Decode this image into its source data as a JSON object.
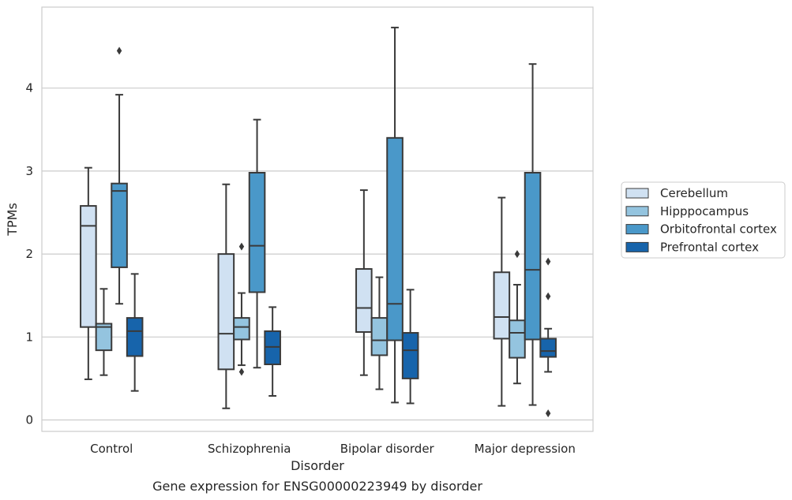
{
  "caption": "Gene expression for ENSG00000223949 by disorder",
  "chart_data": {
    "type": "box",
    "xlabel": "Disorder",
    "ylabel": "TPMs",
    "ylim": [
      -0.15,
      5.0
    ],
    "yticks": [
      0,
      1,
      2,
      3,
      4
    ],
    "grid": "horizontal",
    "legend_position": "right",
    "categories": [
      "Control",
      "Schizophrenia",
      "Bipolar disorder",
      "Major depression"
    ],
    "series": [
      {
        "name": "Cerebellum",
        "color": "#d0e1f2",
        "boxes": [
          {
            "whisker_low": 0.49,
            "q1": 1.12,
            "median": 2.34,
            "q3": 2.58,
            "whisker_high": 3.04,
            "outliers": []
          },
          {
            "whisker_low": 0.14,
            "q1": 0.61,
            "median": 1.04,
            "q3": 2.0,
            "whisker_high": 2.84,
            "outliers": []
          },
          {
            "whisker_low": 0.54,
            "q1": 1.06,
            "median": 1.35,
            "q3": 1.82,
            "whisker_high": 2.77,
            "outliers": []
          },
          {
            "whisker_low": 0.17,
            "q1": 0.98,
            "median": 1.24,
            "q3": 1.78,
            "whisker_high": 2.68,
            "outliers": []
          }
        ]
      },
      {
        "name": "Hipppocampus",
        "color": "#94c4df",
        "boxes": [
          {
            "whisker_low": 0.54,
            "q1": 0.84,
            "median": 1.12,
            "q3": 1.16,
            "whisker_high": 1.58,
            "outliers": []
          },
          {
            "whisker_low": 0.66,
            "q1": 0.97,
            "median": 1.12,
            "q3": 1.23,
            "whisker_high": 1.53,
            "outliers": [
              0.58,
              2.09
            ]
          },
          {
            "whisker_low": 0.37,
            "q1": 0.78,
            "median": 0.96,
            "q3": 1.23,
            "whisker_high": 1.72,
            "outliers": []
          },
          {
            "whisker_low": 0.44,
            "q1": 0.75,
            "median": 1.05,
            "q3": 1.2,
            "whisker_high": 1.63,
            "outliers": [
              2.0
            ]
          }
        ]
      },
      {
        "name": "Orbitofrontal cortex",
        "color": "#4a98c9",
        "boxes": [
          {
            "whisker_low": 1.4,
            "q1": 1.84,
            "median": 2.76,
            "q3": 2.85,
            "whisker_high": 3.92,
            "outliers": [
              4.45
            ]
          },
          {
            "whisker_low": 0.63,
            "q1": 1.54,
            "median": 2.1,
            "q3": 2.98,
            "whisker_high": 3.62,
            "outliers": []
          },
          {
            "whisker_low": 0.21,
            "q1": 0.96,
            "median": 1.4,
            "q3": 3.4,
            "whisker_high": 4.73,
            "outliers": []
          },
          {
            "whisker_low": 0.18,
            "q1": 0.97,
            "median": 1.81,
            "q3": 2.98,
            "whisker_high": 4.29,
            "outliers": []
          }
        ]
      },
      {
        "name": "Prefrontal cortex",
        "color": "#1764ab",
        "boxes": [
          {
            "whisker_low": 0.35,
            "q1": 0.77,
            "median": 1.07,
            "q3": 1.23,
            "whisker_high": 1.76,
            "outliers": []
          },
          {
            "whisker_low": 0.29,
            "q1": 0.67,
            "median": 0.88,
            "q3": 1.07,
            "whisker_high": 1.36,
            "outliers": []
          },
          {
            "whisker_low": 0.2,
            "q1": 0.5,
            "median": 0.84,
            "q3": 1.05,
            "whisker_high": 1.57,
            "outliers": []
          },
          {
            "whisker_low": 0.58,
            "q1": 0.76,
            "median": 0.83,
            "q3": 0.98,
            "whisker_high": 1.1,
            "outliers": [
              0.08,
              1.49,
              1.91
            ]
          }
        ]
      }
    ]
  }
}
